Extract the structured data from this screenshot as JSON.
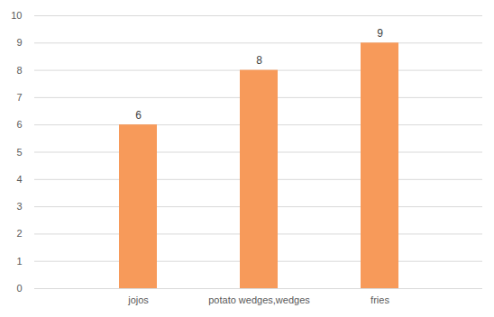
{
  "chart_data": {
    "type": "bar",
    "categories": [
      "jojos",
      "potato wedges,wedges",
      "fries"
    ],
    "values": [
      6,
      8,
      9
    ],
    "color": "#f79a5a",
    "ylim": [
      0,
      10
    ],
    "yticks": [
      0,
      1,
      2,
      3,
      4,
      5,
      6,
      7,
      8,
      9,
      10
    ],
    "grid": true,
    "data_labels": true
  }
}
